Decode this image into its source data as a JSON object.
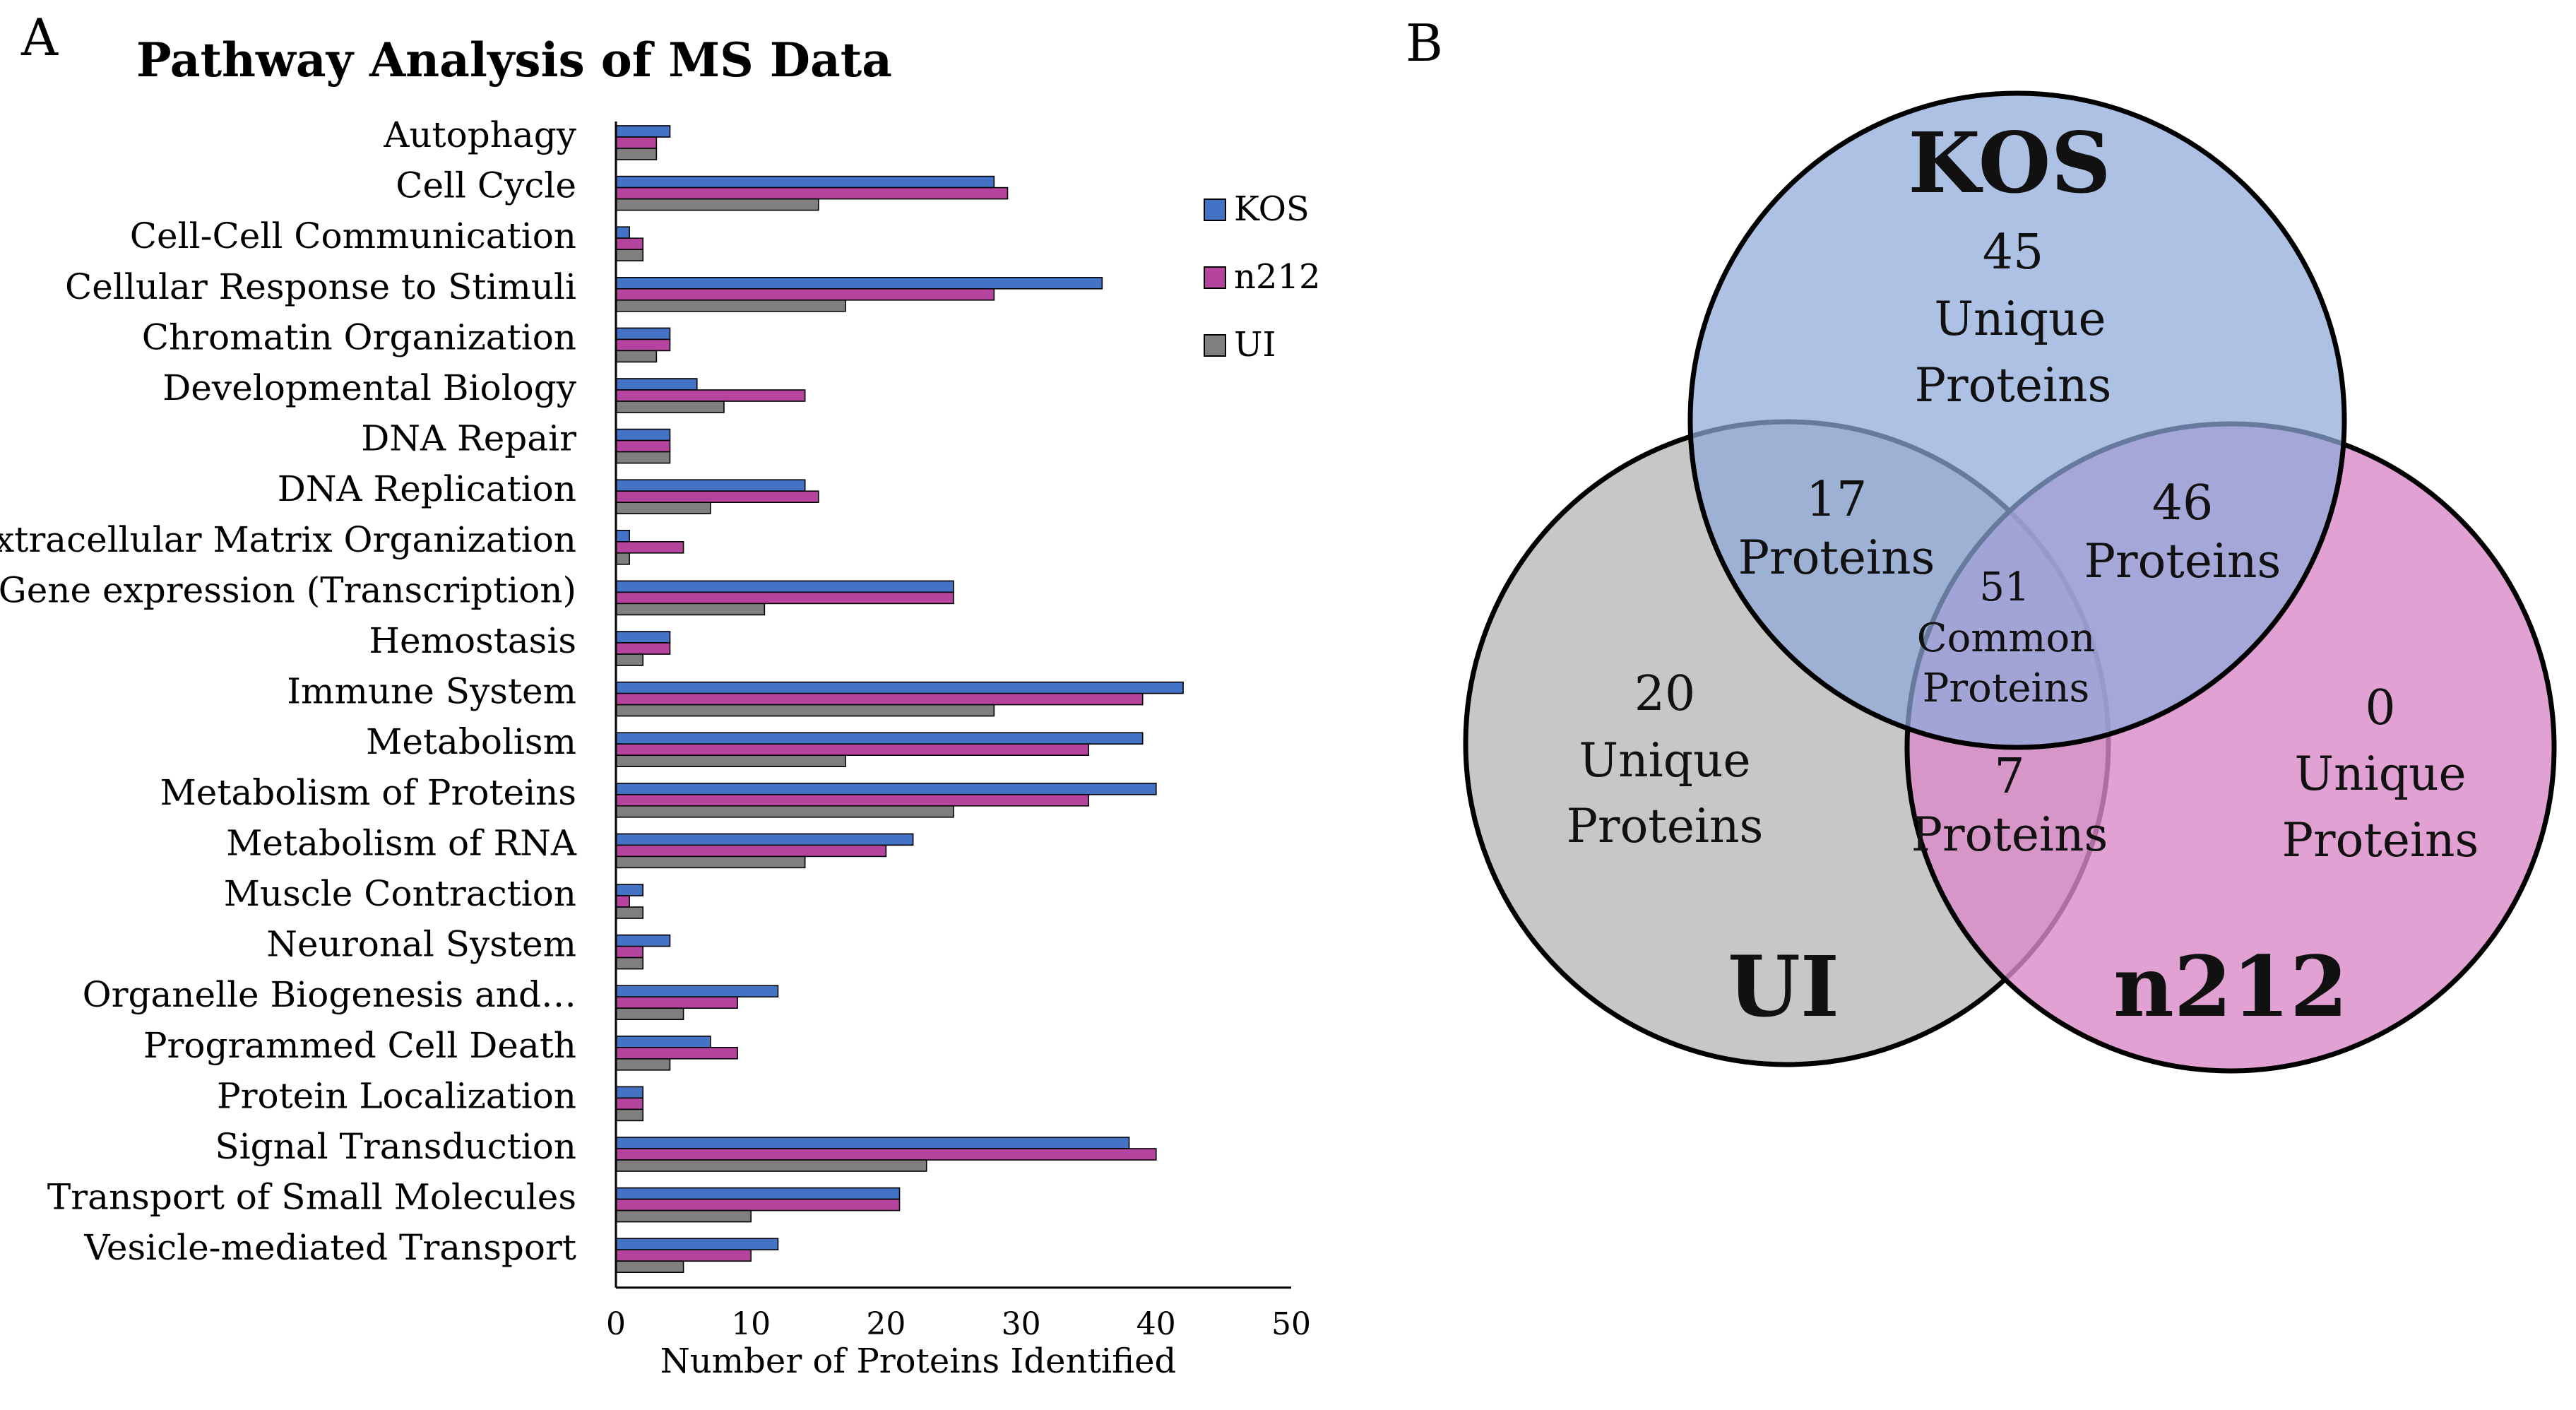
{
  "panel_a_label": "A",
  "panel_b_label": "B",
  "chart_data": [
    {
      "type": "bar",
      "orientation": "horizontal",
      "title": "Pathway Analysis of MS Data",
      "xlabel": "Number of Proteins Identified",
      "ylabel": "",
      "xlim": [
        0,
        50
      ],
      "xticks": [
        0,
        10,
        20,
        30,
        40,
        50
      ],
      "legend_position": "right",
      "categories": [
        "Autophagy",
        "Cell Cycle",
        "Cell-Cell Communication",
        "Cellular Response to Stimuli",
        "Chromatin Organization",
        "Developmental Biology",
        "DNA Repair",
        "DNA Replication",
        "Extracellular Matrix Organization",
        "Gene expression (Transcription)",
        "Hemostasis",
        "Immune System",
        "Metabolism",
        "Metabolism of Proteins",
        "Metabolism of RNA",
        "Muscle Contraction",
        "Neuronal System",
        "Organelle Biogenesis and…",
        "Programmed Cell Death",
        "Protein Localization",
        "Signal Transduction",
        "Transport of Small Molecules",
        "Vesicle-mediated Transport"
      ],
      "series": [
        {
          "name": "KOS",
          "color": "#4472C4",
          "values": [
            4,
            28,
            1,
            36,
            4,
            6,
            4,
            14,
            1,
            25,
            4,
            42,
            39,
            40,
            22,
            2,
            4,
            12,
            7,
            2,
            38,
            21,
            12
          ]
        },
        {
          "name": "n212",
          "color": "#B4449E",
          "values": [
            3,
            29,
            2,
            28,
            4,
            14,
            4,
            15,
            5,
            25,
            4,
            39,
            35,
            35,
            20,
            1,
            2,
            9,
            9,
            2,
            40,
            21,
            10
          ]
        },
        {
          "name": "UI",
          "color": "#7F7F7F",
          "values": [
            3,
            15,
            2,
            17,
            3,
            8,
            4,
            7,
            1,
            11,
            2,
            28,
            17,
            25,
            14,
            2,
            2,
            5,
            4,
            2,
            23,
            10,
            5
          ]
        }
      ]
    }
  ],
  "venn": {
    "sets": [
      {
        "name": "KOS",
        "color": "#8EA9DB"
      },
      {
        "name": "UI",
        "color": "#BFBFBF"
      },
      {
        "name": "n212",
        "color": "#D98BC8"
      }
    ],
    "regions": [
      {
        "id": "kos_only",
        "count": "45",
        "lines": [
          "Unique",
          "Proteins"
        ]
      },
      {
        "id": "ui_only",
        "count": "20",
        "lines": [
          "Unique",
          "Proteins"
        ]
      },
      {
        "id": "n212_only",
        "count": "0",
        "lines": [
          "Unique",
          "Proteins"
        ]
      },
      {
        "id": "kos_ui",
        "count": "17",
        "lines": [
          "Proteins"
        ]
      },
      {
        "id": "kos_n212",
        "count": "46",
        "lines": [
          "Proteins"
        ]
      },
      {
        "id": "ui_n212",
        "count": "7",
        "lines": [
          "Proteins"
        ]
      },
      {
        "id": "all_three",
        "count": "51",
        "lines": [
          "Common",
          "Proteins"
        ]
      }
    ]
  }
}
